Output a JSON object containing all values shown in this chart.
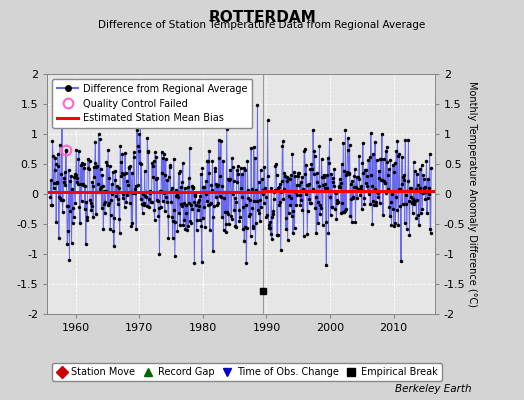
{
  "title": "ROTTERDAM",
  "subtitle": "Difference of Station Temperature Data from Regional Average",
  "ylabel": "Monthly Temperature Anomaly Difference (°C)",
  "xlabel_years": [
    1960,
    1970,
    1980,
    1990,
    2000,
    2010
  ],
  "ylim": [
    -2,
    2
  ],
  "yticks": [
    -2,
    -1.5,
    -1,
    -0.5,
    0,
    0.5,
    1,
    1.5,
    2
  ],
  "ytick_labels": [
    "-2",
    "-1.5",
    "-1",
    "-0.5",
    "0",
    "0.5",
    "1",
    "1.5",
    "2"
  ],
  "xlim_start": 1955.5,
  "xlim_end": 2016.5,
  "background_color": "#d4d4d4",
  "plot_bg_color": "#e6e6e6",
  "grid_color": "#ffffff",
  "line_color": "#6666ee",
  "bias_color": "#ff0000",
  "bias_value": 0.03,
  "bias_x_start": 1955.5,
  "bias_x_end": 1989.5,
  "bias2_value": 0.05,
  "bias2_x_start": 1989.5,
  "bias2_x_end": 2016.5,
  "vertical_line_x": 1989.5,
  "vertical_line_color": "#999999",
  "empirical_break_x": 1989.5,
  "empirical_break_y": -1.62,
  "qc_fail_x": 1958.5,
  "qc_fail_y": 0.74,
  "berkeley_earth_text": "Berkeley Earth",
  "legend1_labels": [
    "Difference from Regional Average",
    "Quality Control Failed",
    "Estimated Station Mean Bias"
  ],
  "legend2_labels": [
    "Station Move",
    "Record Gap",
    "Time of Obs. Change",
    "Empirical Break"
  ]
}
